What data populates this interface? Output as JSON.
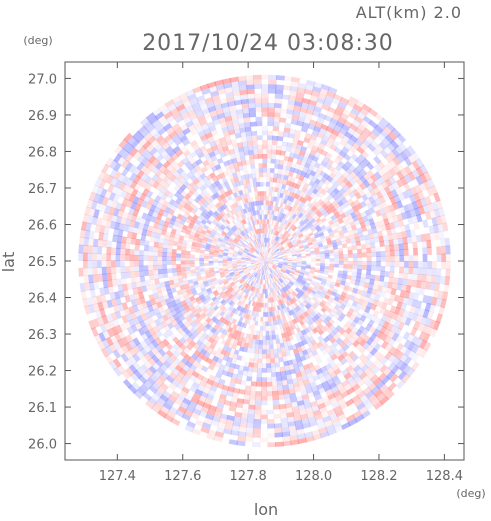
{
  "chart_data": {
    "type": "heatmap",
    "title": "2017/10/24 03:08:30",
    "altitude_label": "ALT(km) 2.0",
    "xlabel": "lon",
    "ylabel": "lat",
    "x_unit": "(deg)",
    "y_unit": "(deg)",
    "xlim": [
      127.24,
      128.46
    ],
    "ylim": [
      25.955,
      27.045
    ],
    "xticks": [
      "127.4",
      "127.6",
      "127.8",
      "128.0",
      "128.2",
      "128.4"
    ],
    "yticks": [
      "26.0",
      "26.1",
      "26.2",
      "26.3",
      "26.4",
      "26.5",
      "26.6",
      "26.7",
      "26.8",
      "26.9",
      "27.0"
    ],
    "center": {
      "lon": 127.85,
      "lat": 26.5
    },
    "radius_deg_lat": 0.51,
    "colors": {
      "positive": "#ff6e6e",
      "negative": "#7a7aff",
      "frame": "#555555",
      "text": "#666666"
    }
  }
}
